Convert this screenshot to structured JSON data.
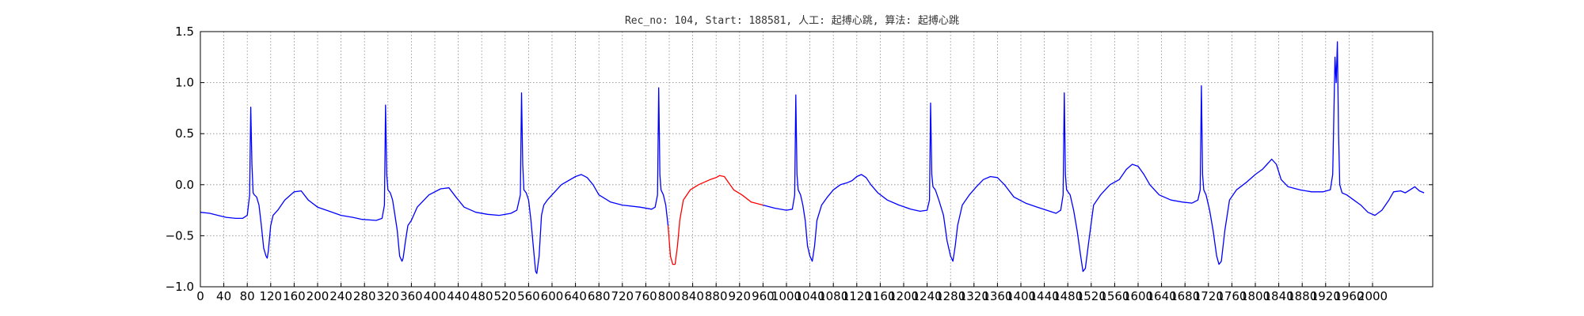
{
  "chart_data": {
    "type": "line",
    "title": "Rec_no: 104, Start: 188581, 人工: 起搏心跳, 算法: 起搏心跳",
    "xlabel": "",
    "ylabel": "",
    "xlim": [
      0,
      1000
    ],
    "ylim": [
      -1.0,
      1.5
    ],
    "x_step": 20,
    "xticks": [
      0,
      20,
      40,
      60,
      80,
      100,
      120,
      140,
      160,
      180,
      200,
      220,
      240,
      260,
      280,
      300,
      320,
      340,
      360,
      380,
      400,
      420,
      440,
      460,
      480,
      500,
      520,
      540,
      560,
      580,
      600,
      620,
      640,
      660,
      680,
      700,
      720,
      740,
      760,
      780,
      800,
      820,
      840,
      860,
      880,
      900,
      920,
      940,
      960,
      980,
      1000
    ],
    "xtick_labels": [
      "0",
      "40",
      "80",
      "120",
      "160",
      "200",
      "240",
      "280",
      "320",
      "360",
      "400",
      "440",
      "480",
      "520",
      "560",
      "600",
      "640",
      "680",
      "720",
      "760",
      "800",
      "840",
      "880",
      "920",
      "960",
      "1000",
      "1040",
      "1080",
      "1120",
      "1160",
      "1200",
      "1240",
      "1280",
      "1320",
      "1360",
      "1400",
      "1440",
      "1480",
      "1520",
      "1560",
      "1600",
      "1640",
      "1680",
      "1720",
      "1760",
      "1800",
      "1840",
      "1880",
      "1920",
      "1960",
      "2000"
    ],
    "yticks": [
      -1.0,
      -0.5,
      0.0,
      0.5,
      1.0,
      1.5
    ],
    "ytick_labels": [
      "−1.0",
      "−0.5",
      "0.0",
      "0.5",
      "1.0",
      "1.5"
    ],
    "grid": true,
    "colors": {
      "normal": "#0000ff",
      "highlight": "#ff0000",
      "grid": "#888888",
      "axis": "#000000"
    },
    "highlight_range": [
      400,
      480
    ],
    "series": [
      {
        "points": [
          [
            0,
            -0.27
          ],
          [
            8,
            -0.28
          ],
          [
            15,
            -0.3
          ],
          [
            22,
            -0.32
          ],
          [
            30,
            -0.33
          ],
          [
            36,
            -0.33
          ],
          [
            40,
            -0.3
          ],
          [
            42,
            -0.1
          ],
          [
            43,
            0.76
          ],
          [
            44,
            0.2
          ],
          [
            45,
            -0.08
          ],
          [
            46,
            -0.1
          ],
          [
            48,
            -0.12
          ],
          [
            50,
            -0.2
          ],
          [
            52,
            -0.4
          ],
          [
            54,
            -0.62
          ],
          [
            56,
            -0.7
          ],
          [
            57,
            -0.72
          ],
          [
            58,
            -0.65
          ],
          [
            60,
            -0.4
          ],
          [
            62,
            -0.3
          ],
          [
            66,
            -0.25
          ],
          [
            72,
            -0.15
          ],
          [
            80,
            -0.07
          ],
          [
            86,
            -0.06
          ],
          [
            92,
            -0.15
          ],
          [
            100,
            -0.22
          ],
          [
            110,
            -0.26
          ],
          [
            120,
            -0.3
          ],
          [
            130,
            -0.32
          ],
          [
            138,
            -0.34
          ],
          [
            150,
            -0.35
          ],
          [
            155,
            -0.33
          ],
          [
            157,
            -0.2
          ],
          [
            158,
            0.78
          ],
          [
            159,
            0.1
          ],
          [
            160,
            -0.05
          ],
          [
            162,
            -0.08
          ],
          [
            164,
            -0.15
          ],
          [
            166,
            -0.3
          ],
          [
            168,
            -0.45
          ],
          [
            170,
            -0.7
          ],
          [
            172,
            -0.75
          ],
          [
            173,
            -0.72
          ],
          [
            175,
            -0.55
          ],
          [
            177,
            -0.4
          ],
          [
            180,
            -0.35
          ],
          [
            185,
            -0.22
          ],
          [
            195,
            -0.1
          ],
          [
            205,
            -0.04
          ],
          [
            212,
            -0.03
          ],
          [
            218,
            -0.12
          ],
          [
            225,
            -0.22
          ],
          [
            235,
            -0.27
          ],
          [
            245,
            -0.29
          ],
          [
            255,
            -0.3
          ],
          [
            265,
            -0.28
          ],
          [
            270,
            -0.25
          ],
          [
            273,
            -0.1
          ],
          [
            274,
            0.9
          ],
          [
            275,
            0.2
          ],
          [
            276,
            -0.05
          ],
          [
            278,
            -0.08
          ],
          [
            280,
            -0.15
          ],
          [
            282,
            -0.35
          ],
          [
            284,
            -0.6
          ],
          [
            286,
            -0.85
          ],
          [
            287,
            -0.87
          ],
          [
            289,
            -0.7
          ],
          [
            291,
            -0.3
          ],
          [
            293,
            -0.2
          ],
          [
            296,
            -0.15
          ],
          [
            300,
            -0.1
          ],
          [
            308,
            0.0
          ],
          [
            320,
            0.08
          ],
          [
            325,
            0.1
          ],
          [
            330,
            0.07
          ],
          [
            335,
            0.0
          ],
          [
            340,
            -0.1
          ],
          [
            350,
            -0.17
          ],
          [
            360,
            -0.2
          ],
          [
            375,
            -0.22
          ],
          [
            385,
            -0.24
          ],
          [
            388,
            -0.22
          ],
          [
            390,
            -0.1
          ],
          [
            391,
            0.95
          ],
          [
            392,
            0.1
          ],
          [
            393,
            -0.05
          ],
          [
            395,
            -0.1
          ],
          [
            397,
            -0.2
          ],
          [
            399,
            -0.4
          ],
          [
            401,
            -0.7
          ],
          [
            403,
            -0.78
          ],
          [
            405,
            -0.78
          ],
          [
            407,
            -0.6
          ],
          [
            409,
            -0.35
          ],
          [
            412,
            -0.15
          ],
          [
            418,
            -0.05
          ],
          [
            425,
            0.0
          ],
          [
            435,
            0.05
          ],
          [
            440,
            0.07
          ],
          [
            443,
            0.09
          ],
          [
            447,
            0.08
          ],
          [
            450,
            0.03
          ],
          [
            455,
            -0.05
          ],
          [
            462,
            -0.1
          ],
          [
            470,
            -0.17
          ],
          [
            480,
            -0.2
          ],
          [
            490,
            -0.23
          ],
          [
            500,
            -0.25
          ],
          [
            505,
            -0.24
          ],
          [
            507,
            -0.1
          ],
          [
            508,
            0.88
          ],
          [
            509,
            0.1
          ],
          [
            510,
            -0.05
          ],
          [
            512,
            -0.1
          ],
          [
            514,
            -0.2
          ],
          [
            516,
            -0.35
          ],
          [
            518,
            -0.6
          ],
          [
            520,
            -0.7
          ],
          [
            522,
            -0.75
          ],
          [
            524,
            -0.6
          ],
          [
            526,
            -0.35
          ],
          [
            530,
            -0.2
          ],
          [
            535,
            -0.12
          ],
          [
            540,
            -0.05
          ],
          [
            546,
            0.0
          ],
          [
            552,
            0.02
          ],
          [
            556,
            0.04
          ],
          [
            560,
            0.08
          ],
          [
            564,
            0.1
          ],
          [
            568,
            0.07
          ],
          [
            572,
            0.0
          ],
          [
            578,
            -0.08
          ],
          [
            586,
            -0.15
          ],
          [
            596,
            -0.2
          ],
          [
            606,
            -0.24
          ],
          [
            614,
            -0.26
          ],
          [
            620,
            -0.25
          ],
          [
            622,
            -0.15
          ],
          [
            623,
            0.8
          ],
          [
            624,
            0.1
          ],
          [
            625,
            -0.02
          ],
          [
            627,
            -0.05
          ],
          [
            630,
            -0.15
          ],
          [
            634,
            -0.3
          ],
          [
            637,
            -0.55
          ],
          [
            640,
            -0.7
          ],
          [
            642,
            -0.75
          ],
          [
            644,
            -0.6
          ],
          [
            646,
            -0.4
          ],
          [
            650,
            -0.2
          ],
          [
            656,
            -0.1
          ],
          [
            662,
            -0.02
          ],
          [
            668,
            0.05
          ],
          [
            674,
            0.08
          ],
          [
            680,
            0.07
          ],
          [
            686,
            0.0
          ],
          [
            694,
            -0.12
          ],
          [
            704,
            -0.18
          ],
          [
            714,
            -0.22
          ],
          [
            722,
            -0.25
          ],
          [
            730,
            -0.28
          ],
          [
            734,
            -0.25
          ],
          [
            736,
            -0.1
          ],
          [
            737,
            0.9
          ],
          [
            738,
            0.1
          ],
          [
            739,
            -0.05
          ],
          [
            742,
            -0.1
          ],
          [
            745,
            -0.25
          ],
          [
            748,
            -0.45
          ],
          [
            751,
            -0.7
          ],
          [
            753,
            -0.85
          ],
          [
            755,
            -0.82
          ],
          [
            758,
            -0.55
          ],
          [
            762,
            -0.2
          ],
          [
            768,
            -0.1
          ],
          [
            776,
            0.0
          ],
          [
            784,
            0.05
          ],
          [
            790,
            0.15
          ],
          [
            795,
            0.2
          ],
          [
            800,
            0.18
          ],
          [
            805,
            0.1
          ],
          [
            810,
            0.0
          ],
          [
            818,
            -0.1
          ],
          [
            828,
            -0.15
          ],
          [
            838,
            -0.17
          ],
          [
            846,
            -0.18
          ],
          [
            851,
            -0.15
          ],
          [
            853,
            -0.05
          ],
          [
            854,
            0.97
          ],
          [
            855,
            0.1
          ],
          [
            856,
            -0.05
          ],
          [
            858,
            -0.1
          ],
          [
            861,
            -0.25
          ],
          [
            864,
            -0.45
          ],
          [
            867,
            -0.7
          ],
          [
            869,
            -0.78
          ],
          [
            871,
            -0.75
          ],
          [
            874,
            -0.45
          ],
          [
            878,
            -0.15
          ],
          [
            884,
            -0.05
          ],
          [
            892,
            0.02
          ],
          [
            900,
            0.1
          ],
          [
            906,
            0.15
          ],
          [
            910,
            0.2
          ],
          [
            914,
            0.25
          ],
          [
            918,
            0.2
          ],
          [
            922,
            0.05
          ],
          [
            928,
            -0.02
          ],
          [
            938,
            -0.05
          ],
          [
            948,
            -0.07
          ],
          [
            958,
            -0.07
          ],
          [
            964,
            -0.05
          ],
          [
            966,
            0.1
          ],
          [
            968,
            1.25
          ],
          [
            969,
            1.0
          ],
          [
            970,
            1.4
          ],
          [
            971,
            0.5
          ],
          [
            972,
            0.0
          ],
          [
            974,
            -0.08
          ],
          [
            978,
            -0.1
          ],
          [
            984,
            -0.15
          ],
          [
            990,
            -0.2
          ],
          [
            996,
            -0.27
          ],
          [
            1002,
            -0.3
          ],
          [
            1008,
            -0.25
          ],
          [
            1014,
            -0.15
          ],
          [
            1018,
            -0.07
          ],
          [
            1024,
            -0.06
          ],
          [
            1028,
            -0.08
          ],
          [
            1032,
            -0.05
          ],
          [
            1036,
            -0.02
          ],
          [
            1040,
            -0.06
          ],
          [
            1044,
            -0.08
          ]
        ]
      }
    ]
  }
}
